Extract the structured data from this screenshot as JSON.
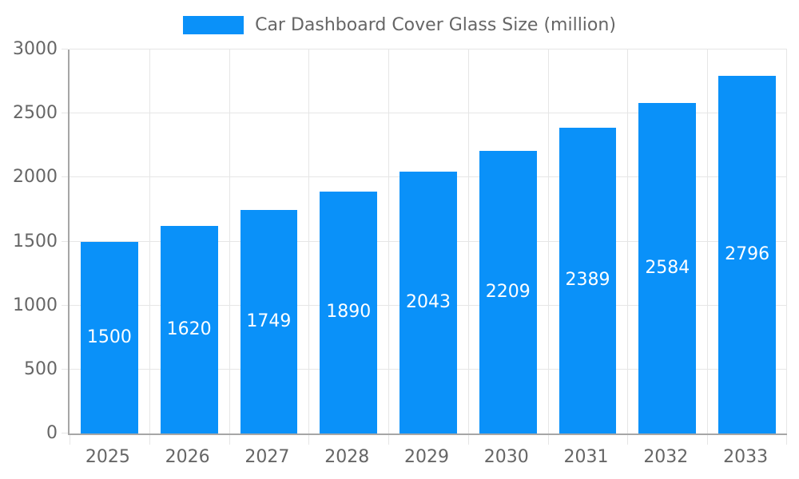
{
  "chart_data": {
    "type": "bar",
    "title": "Car Dashboard Cover Glass Size (million)",
    "legend": [
      {
        "label": "Car Dashboard Cover Glass Size (million)"
      }
    ],
    "legend_position": "top-center",
    "categories": [
      "2025",
      "2026",
      "2027",
      "2028",
      "2029",
      "2030",
      "2031",
      "2032",
      "2033"
    ],
    "series": [
      {
        "name": "Car Dashboard Cover Glass Size (million)",
        "values": [
          1500,
          1620,
          1749,
          1890,
          2043,
          2209,
          2389,
          2584,
          2796
        ]
      }
    ],
    "value_labels_shown": true,
    "xlabel": "",
    "ylabel": "",
    "ylim": [
      0,
      3000
    ],
    "ytick_step": 500,
    "grid": true
  },
  "colors": {
    "bar": "#0a91f9",
    "text": "#666666",
    "value_label_text": "#ffffff",
    "axis_line": "#a6a6a6",
    "grid_line": "#e6e6e6",
    "background": "#ffffff"
  }
}
